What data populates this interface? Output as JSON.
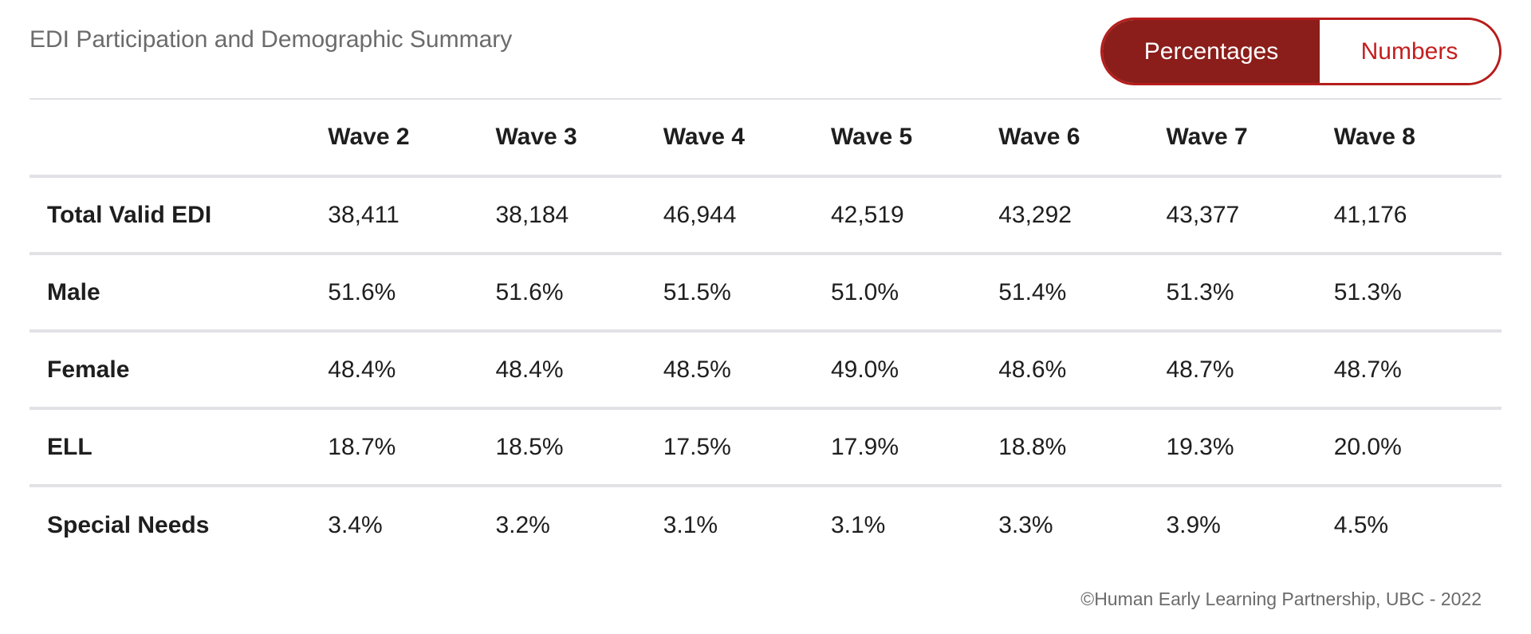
{
  "title": "EDI Participation and Demographic Summary",
  "toggle": {
    "options": [
      "Percentages",
      "Numbers"
    ],
    "selected": "Percentages"
  },
  "table": {
    "header": [
      "",
      "Wave 2",
      "Wave 3",
      "Wave 4",
      "Wave 5",
      "Wave 6",
      "Wave 7",
      "Wave 8"
    ],
    "rows": [
      {
        "label": "Total Valid EDI",
        "values": [
          "38,411",
          "38,184",
          "46,944",
          "42,519",
          "43,292",
          "43,377",
          "41,176"
        ]
      },
      {
        "label": "Male",
        "values": [
          "51.6%",
          "51.6%",
          "51.5%",
          "51.0%",
          "51.4%",
          "51.3%",
          "51.3%"
        ]
      },
      {
        "label": "Female",
        "values": [
          "48.4%",
          "48.4%",
          "48.5%",
          "49.0%",
          "48.6%",
          "48.7%",
          "48.7%"
        ]
      },
      {
        "label": "ELL",
        "values": [
          "18.7%",
          "18.5%",
          "17.5%",
          "17.9%",
          "18.8%",
          "19.3%",
          "20.0%"
        ]
      },
      {
        "label": "Special Needs",
        "values": [
          "3.4%",
          "3.2%",
          "3.1%",
          "3.1%",
          "3.3%",
          "3.9%",
          "4.5%"
        ]
      }
    ]
  },
  "footer": "©Human Early Learning Partnership, UBC - 2022",
  "colors": {
    "accent": "#8b1e1a",
    "accent_text": "#c41e1e",
    "border": "#e2e2e6"
  }
}
